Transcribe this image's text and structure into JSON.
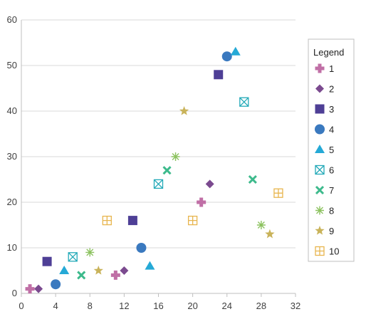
{
  "chart_data": {
    "type": "scatter",
    "title": "",
    "xlabel": "",
    "ylabel": "",
    "xlim": [
      0,
      32
    ],
    "ylim": [
      0,
      60
    ],
    "x_ticks": [
      0,
      4,
      8,
      12,
      16,
      20,
      24,
      28,
      32
    ],
    "y_ticks": [
      0,
      10,
      20,
      30,
      40,
      50,
      60
    ],
    "grid": "horizontal",
    "legend": {
      "title": "Legend",
      "placement": "right"
    },
    "series": [
      {
        "name": "1",
        "marker": "plus",
        "color": "#c06fa6",
        "points": [
          [
            1,
            1
          ],
          [
            11,
            4
          ],
          [
            21,
            20
          ]
        ]
      },
      {
        "name": "2",
        "marker": "diamond",
        "color": "#7b4a8f",
        "points": [
          [
            2,
            1
          ],
          [
            12,
            5
          ],
          [
            22,
            24
          ]
        ]
      },
      {
        "name": "3",
        "marker": "square",
        "color": "#4e3f96",
        "points": [
          [
            3,
            7
          ],
          [
            13,
            16
          ],
          [
            23,
            48
          ]
        ]
      },
      {
        "name": "4",
        "marker": "circle",
        "color": "#3a79bf",
        "points": [
          [
            4,
            2
          ],
          [
            14,
            10
          ],
          [
            24,
            52
          ]
        ]
      },
      {
        "name": "5",
        "marker": "triangle",
        "color": "#25a9d6",
        "points": [
          [
            5,
            5
          ],
          [
            15,
            6
          ],
          [
            25,
            53
          ]
        ]
      },
      {
        "name": "6",
        "marker": "boxed-x",
        "color": "#22a9b8",
        "points": [
          [
            6,
            8
          ],
          [
            16,
            24
          ],
          [
            26,
            42
          ]
        ]
      },
      {
        "name": "7",
        "marker": "x",
        "color": "#3dba8c",
        "points": [
          [
            7,
            4
          ],
          [
            17,
            27
          ],
          [
            27,
            25
          ]
        ]
      },
      {
        "name": "8",
        "marker": "asterisk",
        "color": "#8cc25f",
        "points": [
          [
            8,
            9
          ],
          [
            18,
            30
          ],
          [
            28,
            15
          ]
        ]
      },
      {
        "name": "9",
        "marker": "star",
        "color": "#c9b35a",
        "points": [
          [
            9,
            5
          ],
          [
            19,
            40
          ],
          [
            29,
            13
          ]
        ]
      },
      {
        "name": "10",
        "marker": "boxed-plus",
        "color": "#e8b54e",
        "points": [
          [
            10,
            16
          ],
          [
            20,
            16
          ],
          [
            30,
            22
          ]
        ]
      }
    ]
  }
}
